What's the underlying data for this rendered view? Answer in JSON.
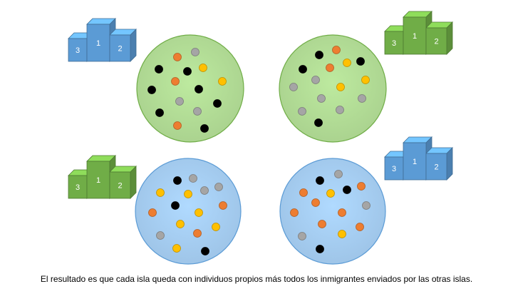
{
  "caption": "El resultado es que cada isla queda con individuos propios más todos los inmigrantes enviados por las otras islas.",
  "colors": {
    "black": "#000000",
    "orange": "#ED7D31",
    "yellow": "#FFC000",
    "gray": "#A5A5A5",
    "green_island": "#A9D18E",
    "green_island_stroke": "#70AD47",
    "blue_island": "#9DC3E6",
    "blue_island_stroke": "#5B9BD5",
    "green_podium": "#70AD47",
    "blue_podium": "#5B9BD5"
  },
  "podium_labels": [
    "3",
    "1",
    "2"
  ],
  "islands": [
    {
      "id": "top-left",
      "theme": "green",
      "podium_theme": "blue",
      "individuals": [
        "orange",
        "gray",
        "black",
        "black",
        "yellow",
        "black",
        "orange",
        "black",
        "yellow",
        "gray",
        "black",
        "black",
        "gray",
        "orange",
        "black"
      ]
    },
    {
      "id": "top-right",
      "theme": "green",
      "podium_theme": "green",
      "individuals": [
        "black",
        "orange",
        "black",
        "orange",
        "yellow",
        "black",
        "gray",
        "yellow",
        "gray",
        "yellow",
        "gray",
        "gray",
        "gray",
        "gray",
        "black"
      ]
    },
    {
      "id": "bottom-left",
      "theme": "blue",
      "podium_theme": "green",
      "individuals": [
        "black",
        "gray",
        "yellow",
        "yellow",
        "gray",
        "gray",
        "black",
        "orange",
        "orange",
        "yellow",
        "yellow",
        "gray",
        "yellow",
        "orange",
        "yellow",
        "black"
      ]
    },
    {
      "id": "bottom-right",
      "theme": "blue",
      "podium_theme": "blue",
      "individuals": [
        "black",
        "gray",
        "orange",
        "yellow",
        "black",
        "orange",
        "orange",
        "gray",
        "orange",
        "orange",
        "orange",
        "orange",
        "gray",
        "yellow",
        "black"
      ]
    }
  ]
}
